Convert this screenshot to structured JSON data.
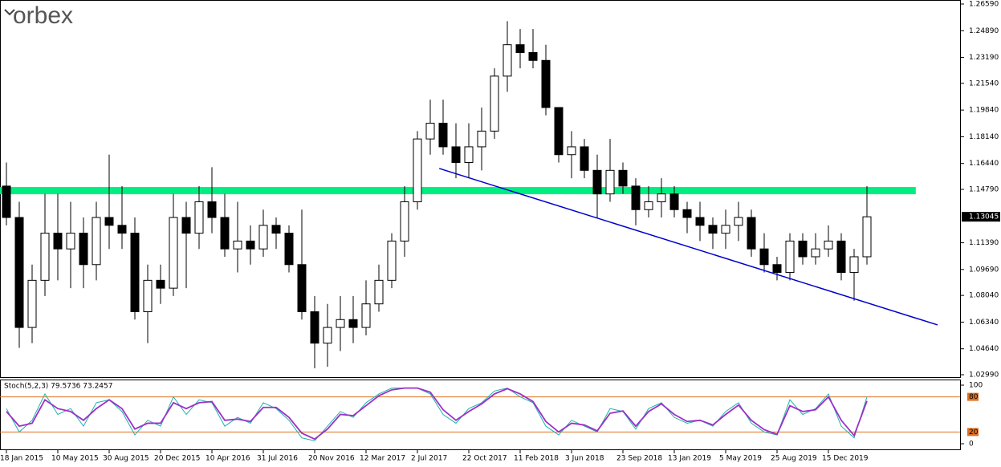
{
  "logo": "orbex",
  "chart_data": [
    {
      "type": "candlestick",
      "open": [
        1.15,
        1.13,
        1.06,
        1.09,
        1.12,
        1.11,
        1.12,
        1.1,
        1.13,
        1.125,
        1.12,
        1.07,
        1.09,
        1.085,
        1.13,
        1.12,
        1.14,
        1.13,
        1.11,
        1.115,
        1.11,
        1.125,
        1.12,
        1.1,
        1.07,
        1.05,
        1.06,
        1.065,
        1.06,
        1.075,
        1.09,
        1.115,
        1.14,
        1.18,
        1.19,
        1.175,
        1.165,
        1.175,
        1.185,
        1.22,
        1.24,
        1.235,
        1.23,
        1.2,
        1.17,
        1.175,
        1.16,
        1.145,
        1.16,
        1.15,
        1.135,
        1.14,
        1.145,
        1.135,
        1.13,
        1.125,
        1.12,
        1.125,
        1.13,
        1.11,
        1.1,
        1.095,
        1.115,
        1.105,
        1.11,
        1.115,
        1.095,
        1.105
      ],
      "high": [
        1.165,
        1.14,
        1.1,
        1.145,
        1.145,
        1.14,
        1.13,
        1.14,
        1.17,
        1.15,
        1.13,
        1.1,
        1.1,
        1.145,
        1.14,
        1.15,
        1.162,
        1.145,
        1.14,
        1.125,
        1.135,
        1.13,
        1.125,
        1.135,
        1.08,
        1.075,
        1.08,
        1.08,
        1.09,
        1.1,
        1.12,
        1.15,
        1.185,
        1.205,
        1.205,
        1.19,
        1.19,
        1.2,
        1.225,
        1.255,
        1.25,
        1.25,
        1.24,
        1.2,
        1.185,
        1.18,
        1.17,
        1.18,
        1.165,
        1.155,
        1.15,
        1.155,
        1.15,
        1.14,
        1.14,
        1.13,
        1.135,
        1.14,
        1.135,
        1.12,
        1.105,
        1.12,
        1.12,
        1.12,
        1.125,
        1.12,
        1.11,
        1.15
      ],
      "low": [
        1.125,
        1.047,
        1.05,
        1.08,
        1.09,
        1.085,
        1.085,
        1.09,
        1.11,
        1.11,
        1.065,
        1.05,
        1.075,
        1.08,
        1.085,
        1.11,
        1.12,
        1.105,
        1.095,
        1.1,
        1.105,
        1.11,
        1.095,
        1.065,
        1.034,
        1.035,
        1.045,
        1.05,
        1.055,
        1.07,
        1.085,
        1.105,
        1.135,
        1.17,
        1.17,
        1.155,
        1.155,
        1.16,
        1.18,
        1.21,
        1.225,
        1.225,
        1.195,
        1.165,
        1.155,
        1.155,
        1.13,
        1.14,
        1.145,
        1.125,
        1.13,
        1.13,
        1.13,
        1.12,
        1.115,
        1.11,
        1.11,
        1.115,
        1.105,
        1.095,
        1.09,
        1.09,
        1.1,
        1.1,
        1.105,
        1.09,
        1.077,
        1.1
      ],
      "close": [
        1.13,
        1.06,
        1.09,
        1.12,
        1.11,
        1.12,
        1.1,
        1.13,
        1.125,
        1.12,
        1.07,
        1.09,
        1.085,
        1.13,
        1.12,
        1.14,
        1.13,
        1.11,
        1.115,
        1.11,
        1.125,
        1.12,
        1.1,
        1.07,
        1.05,
        1.06,
        1.065,
        1.06,
        1.075,
        1.09,
        1.115,
        1.14,
        1.18,
        1.19,
        1.175,
        1.165,
        1.175,
        1.185,
        1.22,
        1.24,
        1.235,
        1.23,
        1.2,
        1.17,
        1.175,
        1.16,
        1.145,
        1.16,
        1.15,
        1.135,
        1.14,
        1.145,
        1.135,
        1.13,
        1.125,
        1.12,
        1.125,
        1.13,
        1.11,
        1.1,
        1.095,
        1.115,
        1.105,
        1.11,
        1.115,
        1.095,
        1.105,
        1.13045
      ],
      "xlim": [
        -0.5,
        74.25
      ],
      "xticks": [
        {
          "value": 0,
          "label": "18 Jan 2015"
        },
        {
          "value": 4,
          "label": "10 May 2015"
        },
        {
          "value": 8,
          "label": "30 Aug 2015"
        },
        {
          "value": 12,
          "label": "20 Dec 2015"
        },
        {
          "value": 16,
          "label": "10 Apr 2016"
        },
        {
          "value": 20,
          "label": "31 Jul 2016"
        },
        {
          "value": 24,
          "label": "20 Nov 2016"
        },
        {
          "value": 28,
          "label": "12 Mar 2017"
        },
        {
          "value": 32,
          "label": "2 Jul 2017"
        },
        {
          "value": 36,
          "label": "22 Oct 2017"
        },
        {
          "value": 40,
          "label": "11 Feb 2018"
        },
        {
          "value": 44,
          "label": "3 Jun 2018"
        },
        {
          "value": 48,
          "label": "23 Sep 2018"
        },
        {
          "value": 52,
          "label": "13 Jan 2019"
        },
        {
          "value": 56,
          "label": "5 May 2019"
        },
        {
          "value": 60,
          "label": "25 Aug 2019"
        },
        {
          "value": 64,
          "label": "15 Dec 2019"
        }
      ],
      "ylim": [
        1.0299,
        1.2659
      ],
      "yticks": [
        {
          "value": 1.2659,
          "label": "1.26590"
        },
        {
          "value": 1.2489,
          "label": "1.24890"
        },
        {
          "value": 1.2319,
          "label": "1.23190"
        },
        {
          "value": 1.2154,
          "label": "1.21540"
        },
        {
          "value": 1.1984,
          "label": "1.19840"
        },
        {
          "value": 1.1814,
          "label": "1.18140"
        },
        {
          "value": 1.1644,
          "label": "1.16440"
        },
        {
          "value": 1.1479,
          "label": "1.14790"
        },
        {
          "value": 1.1139,
          "label": "1.11390"
        },
        {
          "value": 1.0969,
          "label": "1.09690"
        },
        {
          "value": 1.0804,
          "label": "1.08040"
        },
        {
          "value": 1.0634,
          "label": "1.06340"
        },
        {
          "value": 1.0464,
          "label": "1.04640"
        },
        {
          "value": 1.0299,
          "label": "1.02990"
        }
      ],
      "current_price": 1.13045,
      "zone": {
        "x": [
          -0.5,
          70.8
        ],
        "y": [
          1.1448,
          1.1494
        ],
        "color": "#00ee80"
      },
      "trendline": {
        "x": [
          33.7,
          72.5
        ],
        "y": [
          1.1612,
          1.0616
        ],
        "color": "#0000cc"
      }
    },
    {
      "type": "line",
      "title": "Stoch(5,2,3) 79.5736 73.2457",
      "ylim": [
        0,
        100
      ],
      "yticks": [
        100,
        80,
        20,
        0
      ],
      "levels": [
        80,
        20
      ],
      "level_color": "#e07020",
      "series": [
        {
          "color": "#20b2aa",
          "values": [
            60,
            20,
            40,
            85,
            50,
            60,
            30,
            70,
            75,
            55,
            15,
            40,
            30,
            80,
            50,
            75,
            70,
            30,
            45,
            35,
            70,
            60,
            40,
            10,
            5,
            30,
            55,
            45,
            70,
            85,
            95,
            95,
            95,
            85,
            50,
            35,
            60,
            70,
            90,
            95,
            80,
            70,
            30,
            15,
            40,
            30,
            20,
            60,
            55,
            25,
            60,
            70,
            45,
            35,
            40,
            30,
            55,
            70,
            35,
            20,
            15,
            75,
            50,
            60,
            85,
            30,
            10,
            80
          ]
        },
        {
          "color": "#9b30c8",
          "values": [
            55,
            30,
            35,
            75,
            60,
            55,
            40,
            60,
            75,
            60,
            25,
            35,
            35,
            70,
            60,
            70,
            72,
            40,
            42,
            38,
            62,
            62,
            45,
            18,
            8,
            25,
            50,
            48,
            65,
            82,
            92,
            95,
            95,
            88,
            58,
            40,
            55,
            68,
            85,
            94,
            85,
            72,
            38,
            20,
            35,
            32,
            22,
            52,
            56,
            30,
            55,
            68,
            50,
            38,
            40,
            32,
            50,
            66,
            40,
            24,
            16,
            65,
            55,
            58,
            80,
            40,
            14,
            73
          ]
        }
      ]
    }
  ]
}
